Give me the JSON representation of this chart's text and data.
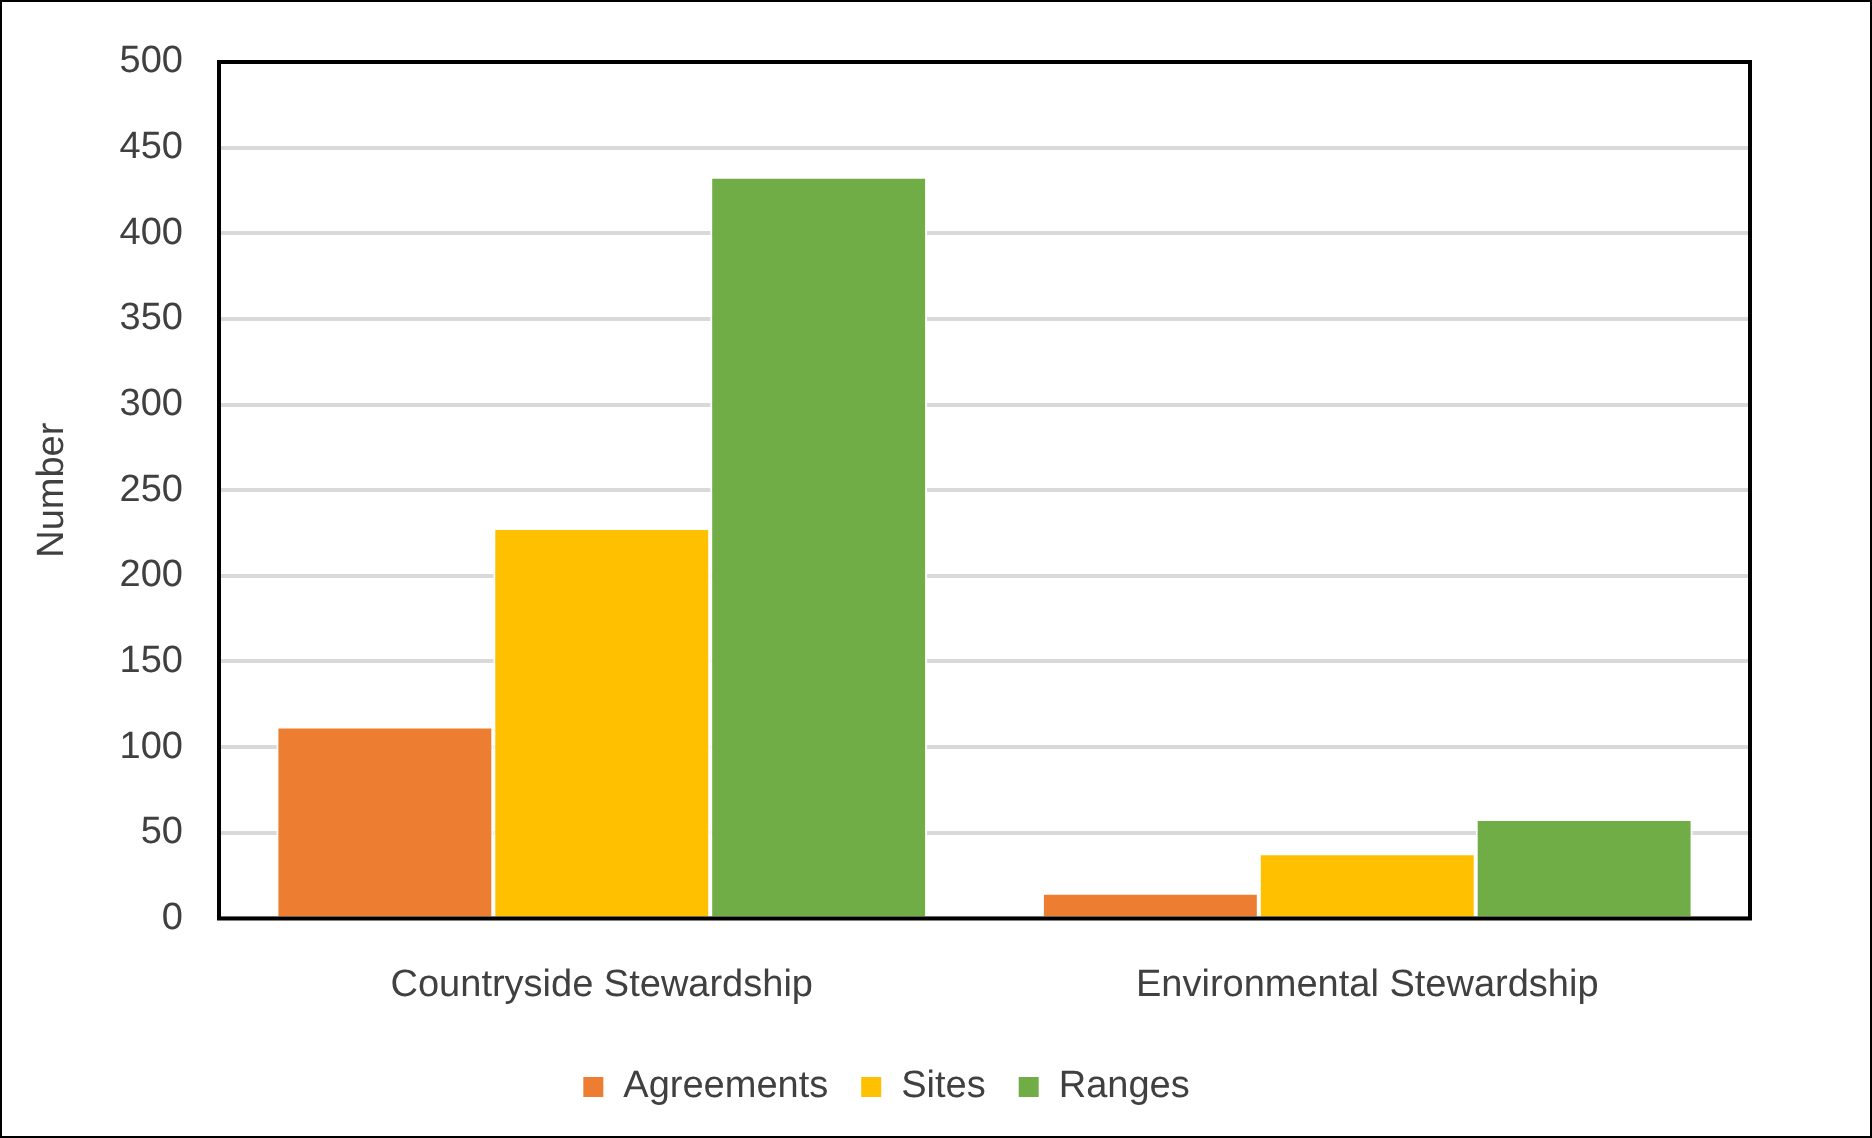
{
  "chart_data": {
    "type": "bar",
    "ylabel": "Number",
    "categories": [
      "Countryside Stewardship",
      "Environmental Stewardship"
    ],
    "series": [
      {
        "name": "Agreements",
        "color": "#ed7d31",
        "values": [
          112,
          15
        ]
      },
      {
        "name": "Sites",
        "color": "#ffc000",
        "values": [
          228,
          38
        ]
      },
      {
        "name": "Ranges",
        "color": "#70ad47",
        "values": [
          433,
          58
        ]
      }
    ],
    "ylim": [
      0,
      500
    ],
    "yticks": [
      0,
      50,
      100,
      150,
      200,
      250,
      300,
      350,
      400,
      450,
      500
    ],
    "grid": "y",
    "legend": "bottom"
  }
}
